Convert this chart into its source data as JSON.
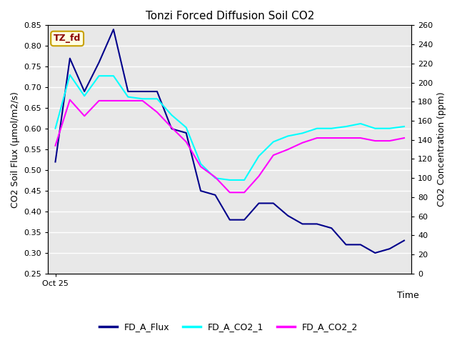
{
  "title": "Tonzi Forced Diffusion Soil CO2",
  "xlabel": "Time",
  "ylabel_left": "CO2 Soil Flux (μmol/m2/s)",
  "ylabel_right": "CO2 Concentration (ppm)",
  "x_label_start": "Oct 25",
  "ylim_left": [
    0.25,
    0.85
  ],
  "ylim_right": [
    0,
    260
  ],
  "yticks_left": [
    0.25,
    0.3,
    0.35,
    0.4,
    0.45,
    0.5,
    0.55,
    0.6,
    0.65,
    0.7,
    0.75,
    0.8,
    0.85
  ],
  "yticks_right": [
    0,
    20,
    40,
    60,
    80,
    100,
    120,
    140,
    160,
    180,
    200,
    220,
    240,
    260
  ],
  "fd_a_flux": [
    0.52,
    0.77,
    0.69,
    0.76,
    0.84,
    0.69,
    0.69,
    0.69,
    0.6,
    0.59,
    0.45,
    0.44,
    0.38,
    0.38,
    0.42,
    0.42,
    0.39,
    0.37,
    0.37,
    0.36,
    0.32,
    0.32,
    0.3,
    0.31,
    0.33
  ],
  "fd_a_co2_1_ppm": [
    152,
    208,
    186,
    207,
    207,
    185,
    183,
    183,
    166,
    153,
    115,
    100,
    98,
    98,
    123,
    138,
    144,
    147,
    152,
    152,
    154,
    157,
    152,
    152,
    154
  ],
  "fd_a_co2_2_ppm": [
    134,
    182,
    165,
    181,
    181,
    181,
    181,
    169,
    153,
    138,
    112,
    101,
    85,
    85,
    102,
    124,
    130,
    137,
    142,
    142,
    142,
    142,
    139,
    139,
    142
  ],
  "color_flux": "#00008B",
  "color_co2_1": "#00FFFF",
  "color_co2_2": "#FF00FF",
  "legend_labels": [
    "FD_A_Flux",
    "FD_A_CO2_1",
    "FD_A_CO2_2"
  ],
  "box_label": "TZ_fd",
  "box_facecolor": "#FFFFE0",
  "box_edgecolor": "#C8A000",
  "box_textcolor": "#8B0000",
  "figure_bg": "#FFFFFF",
  "plot_bg": "#E8E8E8",
  "grid_color": "#FFFFFF",
  "linewidth": 1.5
}
